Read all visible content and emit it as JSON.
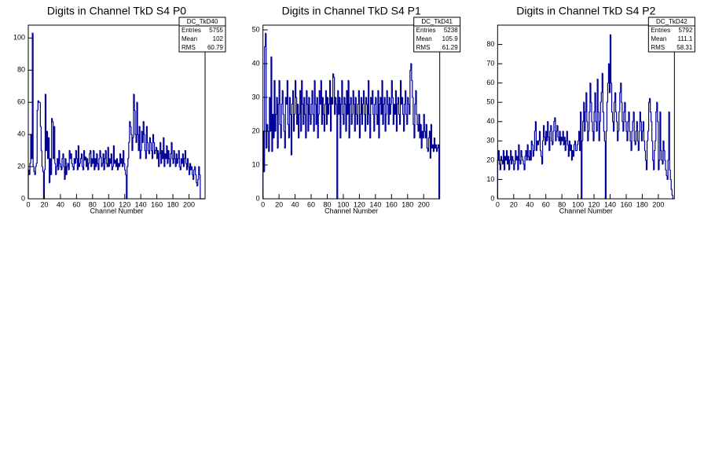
{
  "chart_data": [
    {
      "type": "histogram",
      "title": "Digits in Channel TkD S4 P0",
      "x_label": "Channel Number",
      "color": "#000099",
      "xlim": [
        0,
        220
      ],
      "xticks": [
        0,
        20,
        40,
        60,
        80,
        100,
        120,
        140,
        160,
        180,
        200
      ],
      "ylim": [
        0,
        108
      ],
      "yticks": [
        0,
        20,
        40,
        60,
        80,
        100
      ],
      "stats": {
        "name": "DC_TkD40",
        "rows": [
          {
            "label": "Entries",
            "value": 5755
          },
          {
            "label": "Mean",
            "value": 102
          },
          {
            "label": "RMS",
            "value": 60.79
          }
        ]
      },
      "bins": [
        0,
        1,
        2,
        3,
        4,
        5,
        6,
        7,
        8,
        9,
        10,
        11,
        12,
        13,
        14,
        15,
        16,
        17,
        18,
        19,
        20,
        21,
        22,
        23,
        24,
        25,
        26,
        27,
        28,
        29,
        30,
        31,
        32,
        33,
        34,
        35,
        36,
        37,
        38,
        39,
        40,
        41,
        42,
        43,
        44,
        45,
        46,
        47,
        48,
        49,
        50,
        51,
        52,
        53,
        54,
        55,
        56,
        57,
        58,
        59,
        60,
        61,
        62,
        63,
        64,
        65,
        66,
        67,
        68,
        69,
        70,
        71,
        72,
        73,
        74,
        75,
        76,
        77,
        78,
        79,
        80,
        81,
        82,
        83,
        84,
        85,
        86,
        87,
        88,
        89,
        90,
        91,
        92,
        93,
        94,
        95,
        96,
        97,
        98,
        99,
        100,
        101,
        102,
        103,
        104,
        105,
        106,
        107,
        108,
        109,
        110,
        111,
        112,
        113,
        114,
        115,
        116,
        117,
        118,
        119,
        120,
        121,
        122,
        123,
        124,
        125,
        126,
        127,
        128,
        129,
        130,
        131,
        132,
        133,
        134,
        135,
        136,
        137,
        138,
        139,
        140,
        141,
        142,
        143,
        144,
        145,
        146,
        147,
        148,
        149,
        150,
        151,
        152,
        153,
        154,
        155,
        156,
        157,
        158,
        159,
        160,
        161,
        162,
        163,
        164,
        165,
        166,
        167,
        168,
        169,
        170,
        171,
        172,
        173,
        174,
        175,
        176,
        177,
        178,
        179,
        180,
        181,
        182,
        183,
        184,
        185,
        186,
        187,
        188,
        189,
        190,
        191,
        192,
        193,
        194,
        195,
        196,
        197,
        198,
        199,
        200,
        201,
        202,
        203,
        204,
        205,
        206,
        207,
        208,
        209,
        210,
        211,
        212,
        213,
        214,
        215,
        216,
        217,
        218,
        219,
        220
      ],
      "values": [
        18,
        15,
        22,
        40,
        25,
        103,
        20,
        17,
        15,
        20,
        22,
        55,
        61,
        60,
        60,
        45,
        30,
        20,
        17,
        0,
        18,
        65,
        30,
        42,
        25,
        38,
        10,
        25,
        15,
        50,
        48,
        25,
        45,
        22,
        15,
        20,
        25,
        18,
        30,
        22,
        20,
        18,
        25,
        28,
        20,
        12,
        25,
        15,
        20,
        22,
        18,
        30,
        25,
        28,
        22,
        20,
        18,
        25,
        22,
        30,
        25,
        18,
        33,
        20,
        22,
        25,
        28,
        20,
        18,
        30,
        24,
        26,
        20,
        25,
        18,
        22,
        28,
        30,
        20,
        25,
        22,
        30,
        18,
        25,
        20,
        28,
        22,
        18,
        25,
        30,
        26,
        20,
        22,
        28,
        18,
        25,
        30,
        22,
        20,
        32,
        20,
        25,
        22,
        28,
        18,
        20,
        33,
        22,
        24,
        20,
        25,
        18,
        22,
        20,
        28,
        22,
        25,
        20,
        30,
        22,
        18,
        15,
        0,
        20,
        25,
        35,
        48,
        45,
        40,
        30,
        38,
        65,
        55,
        40,
        35,
        60,
        40,
        30,
        45,
        25,
        30,
        42,
        35,
        48,
        40,
        30,
        25,
        45,
        35,
        30,
        28,
        38,
        35,
        30,
        25,
        40,
        35,
        28,
        30,
        32,
        25,
        30,
        20,
        28,
        35,
        22,
        30,
        25,
        38,
        20,
        28,
        25,
        33,
        22,
        30,
        25,
        20,
        28,
        35,
        25,
        22,
        30,
        25,
        20,
        28,
        22,
        25,
        30,
        20,
        18,
        25,
        22,
        28,
        20,
        25,
        30,
        22,
        18,
        25,
        20,
        15,
        22,
        18,
        20,
        15,
        12,
        18,
        20,
        15,
        10,
        8,
        12,
        20,
        15,
        0,
        0,
        0,
        0,
        0,
        0
      ]
    },
    {
      "type": "histogram",
      "title": "Digits in Channel TkD S4 P1",
      "x_label": "Channel Number",
      "color": "#000099",
      "xlim": [
        0,
        220
      ],
      "xticks": [
        0,
        20,
        40,
        60,
        80,
        100,
        120,
        140,
        160,
        180,
        200
      ],
      "ylim": [
        0,
        51.4
      ],
      "yticks": [
        0,
        10,
        20,
        30,
        40,
        50
      ],
      "stats": {
        "name": "DC_TkD41",
        "rows": [
          {
            "label": "Entries",
            "value": 5238
          },
          {
            "label": "Mean",
            "value": 105.9
          },
          {
            "label": "RMS",
            "value": 61.29
          }
        ]
      },
      "bins": [
        0,
        1,
        2,
        3,
        4,
        5,
        6,
        7,
        8,
        9,
        10,
        11,
        12,
        13,
        14,
        15,
        16,
        17,
        18,
        19,
        20,
        21,
        22,
        23,
        24,
        25,
        26,
        27,
        28,
        29,
        30,
        31,
        32,
        33,
        34,
        35,
        36,
        37,
        38,
        39,
        40,
        41,
        42,
        43,
        44,
        45,
        46,
        47,
        48,
        49,
        50,
        51,
        52,
        53,
        54,
        55,
        56,
        57,
        58,
        59,
        60,
        61,
        62,
        63,
        64,
        65,
        66,
        67,
        68,
        69,
        70,
        71,
        72,
        73,
        74,
        75,
        76,
        77,
        78,
        79,
        80,
        81,
        82,
        83,
        84,
        85,
        86,
        87,
        88,
        89,
        90,
        91,
        92,
        93,
        94,
        95,
        96,
        97,
        98,
        99,
        100,
        101,
        102,
        103,
        104,
        105,
        106,
        107,
        108,
        109,
        110,
        111,
        112,
        113,
        114,
        115,
        116,
        117,
        118,
        119,
        120,
        121,
        122,
        123,
        124,
        125,
        126,
        127,
        128,
        129,
        130,
        131,
        132,
        133,
        134,
        135,
        136,
        137,
        138,
        139,
        140,
        141,
        142,
        143,
        144,
        145,
        146,
        147,
        148,
        149,
        150,
        151,
        152,
        153,
        154,
        155,
        156,
        157,
        158,
        159,
        160,
        161,
        162,
        163,
        164,
        165,
        166,
        167,
        168,
        169,
        170,
        171,
        172,
        173,
        174,
        175,
        176,
        177,
        178,
        179,
        180,
        181,
        182,
        183,
        184,
        185,
        186,
        187,
        188,
        189,
        190,
        191,
        192,
        193,
        194,
        195,
        196,
        197,
        198,
        199,
        200,
        201,
        202,
        203,
        204,
        205,
        206,
        207,
        208,
        209,
        210,
        211,
        212,
        213,
        214,
        215,
        216,
        217,
        218,
        219,
        220
      ],
      "values": [
        20,
        8,
        45,
        49,
        15,
        22,
        20,
        14,
        30,
        20,
        42,
        14,
        25,
        18,
        35,
        20,
        25,
        30,
        15,
        28,
        35,
        22,
        18,
        28,
        32,
        25,
        20,
        15,
        30,
        28,
        35,
        22,
        18,
        30,
        25,
        13,
        28,
        32,
        20,
        25,
        35,
        30,
        22,
        28,
        18,
        25,
        32,
        20,
        35,
        28,
        22,
        30,
        25,
        18,
        32,
        28,
        20,
        30,
        25,
        22,
        28,
        32,
        25,
        20,
        35,
        28,
        22,
        30,
        18,
        25,
        32,
        28,
        35,
        22,
        30,
        25,
        20,
        28,
        32,
        22,
        30,
        25,
        28,
        35,
        20,
        30,
        28,
        37,
        36,
        25,
        30,
        28,
        0,
        32,
        25,
        30,
        18,
        28,
        35,
        25,
        22,
        30,
        28,
        20,
        32,
        25,
        35,
        18,
        28,
        30,
        22,
        25,
        32,
        28,
        20,
        30,
        25,
        22,
        28,
        32,
        18,
        25,
        30,
        22,
        28,
        32,
        25,
        20,
        30,
        28,
        22,
        35,
        25,
        18,
        30,
        28,
        32,
        25,
        20,
        28,
        30,
        25,
        22,
        32,
        18,
        28,
        30,
        25,
        35,
        22,
        28,
        30,
        20,
        25,
        32,
        28,
        22,
        30,
        25,
        28,
        35,
        30,
        22,
        28,
        25,
        32,
        20,
        28,
        30,
        25,
        22,
        35,
        28,
        30,
        25,
        20,
        28,
        32,
        25,
        22,
        30,
        28,
        25,
        38,
        40,
        35,
        30,
        22,
        18,
        28,
        32,
        25,
        22,
        20,
        25,
        18,
        22,
        15,
        20,
        18,
        25,
        20,
        18,
        22,
        15,
        14,
        18,
        20,
        12,
        22,
        15,
        16,
        14,
        18,
        15,
        16,
        14,
        15,
        16,
        0
      ]
    },
    {
      "type": "histogram",
      "title": "Digits in Channel TkD S4 P2",
      "x_label": "Channel Number",
      "color": "#000099",
      "xlim": [
        0,
        220
      ],
      "xticks": [
        0,
        20,
        40,
        60,
        80,
        100,
        120,
        140,
        160,
        180,
        200
      ],
      "ylim": [
        0,
        90
      ],
      "yticks": [
        0,
        10,
        20,
        30,
        40,
        50,
        60,
        70,
        80
      ],
      "stats": {
        "name": "DC_TkD42",
        "rows": [
          {
            "label": "Entries",
            "value": 5792
          },
          {
            "label": "Mean",
            "value": 111.1
          },
          {
            "label": "RMS",
            "value": 58.31
          }
        ]
      },
      "bins": [
        0,
        1,
        2,
        3,
        4,
        5,
        6,
        7,
        8,
        9,
        10,
        11,
        12,
        13,
        14,
        15,
        16,
        17,
        18,
        19,
        20,
        21,
        22,
        23,
        24,
        25,
        26,
        27,
        28,
        29,
        30,
        31,
        32,
        33,
        34,
        35,
        36,
        37,
        38,
        39,
        40,
        41,
        42,
        43,
        44,
        45,
        46,
        47,
        48,
        49,
        50,
        51,
        52,
        53,
        54,
        55,
        56,
        57,
        58,
        59,
        60,
        61,
        62,
        63,
        64,
        65,
        66,
        67,
        68,
        69,
        70,
        71,
        72,
        73,
        74,
        75,
        76,
        77,
        78,
        79,
        80,
        81,
        82,
        83,
        84,
        85,
        86,
        87,
        88,
        89,
        90,
        91,
        92,
        93,
        94,
        95,
        96,
        97,
        98,
        99,
        100,
        101,
        102,
        103,
        104,
        105,
        106,
        107,
        108,
        109,
        110,
        111,
        112,
        113,
        114,
        115,
        116,
        117,
        118,
        119,
        120,
        121,
        122,
        123,
        124,
        125,
        126,
        127,
        128,
        129,
        130,
        131,
        132,
        133,
        134,
        135,
        136,
        137,
        138,
        139,
        140,
        141,
        142,
        143,
        144,
        145,
        146,
        147,
        148,
        149,
        150,
        151,
        152,
        153,
        154,
        155,
        156,
        157,
        158,
        159,
        160,
        161,
        162,
        163,
        164,
        165,
        166,
        167,
        168,
        169,
        170,
        171,
        172,
        173,
        174,
        175,
        176,
        177,
        178,
        179,
        180,
        181,
        182,
        183,
        184,
        185,
        186,
        187,
        188,
        189,
        190,
        191,
        192,
        193,
        194,
        195,
        196,
        197,
        198,
        199,
        200,
        201,
        202,
        203,
        204,
        205,
        206,
        207,
        208,
        209,
        210,
        211,
        212,
        213,
        214,
        215,
        216,
        217,
        218,
        219,
        220
      ],
      "values": [
        20,
        25,
        18,
        15,
        22,
        20,
        18,
        25,
        15,
        22,
        20,
        25,
        18,
        22,
        15,
        20,
        25,
        18,
        22,
        20,
        15,
        18,
        25,
        20,
        22,
        15,
        28,
        20,
        18,
        25,
        22,
        20,
        18,
        15,
        22,
        25,
        20,
        28,
        22,
        20,
        25,
        20,
        30,
        28,
        22,
        25,
        35,
        40,
        25,
        30,
        28,
        30,
        35,
        25,
        22,
        18,
        30,
        38,
        32,
        28,
        35,
        30,
        40,
        32,
        25,
        35,
        38,
        30,
        28,
        35,
        40,
        42,
        30,
        35,
        38,
        32,
        30,
        35,
        28,
        32,
        30,
        35,
        28,
        32,
        25,
        30,
        35,
        28,
        22,
        30,
        25,
        28,
        20,
        25,
        22,
        28,
        30,
        25,
        25,
        28,
        30,
        35,
        25,
        45,
        0,
        30,
        40,
        50,
        35,
        45,
        55,
        40,
        30,
        35,
        45,
        60,
        50,
        40,
        35,
        30,
        45,
        55,
        40,
        35,
        62,
        45,
        30,
        40,
        50,
        55,
        65,
        45,
        35,
        30,
        0,
        35,
        50,
        60,
        70,
        55,
        85,
        60,
        45,
        40,
        35,
        50,
        55,
        45,
        40,
        30,
        35,
        45,
        55,
        60,
        50,
        40,
        35,
        45,
        50,
        40,
        35,
        30,
        40,
        45,
        35,
        30,
        25,
        35,
        40,
        45,
        30,
        28,
        35,
        40,
        30,
        25,
        35,
        45,
        40,
        30,
        35,
        40,
        30,
        25,
        20,
        15,
        30,
        35,
        50,
        52,
        45,
        40,
        30,
        20,
        15,
        25,
        30,
        45,
        50,
        40,
        15,
        20,
        45,
        25,
        20,
        18,
        30,
        25,
        20,
        15,
        12,
        10,
        20,
        45,
        15,
        10,
        5,
        2,
        0,
        0
      ]
    }
  ]
}
